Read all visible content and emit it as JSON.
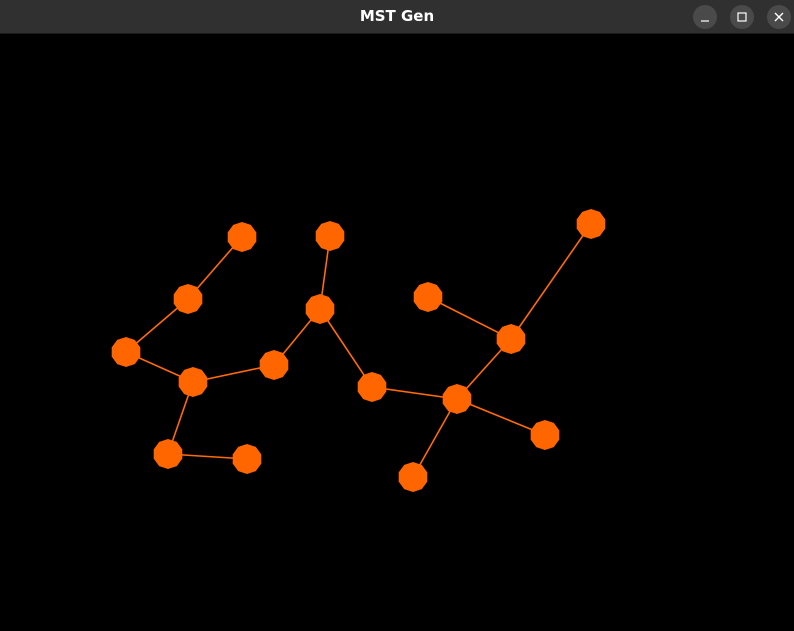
{
  "window": {
    "title": "MST Gen"
  },
  "titlebar_buttons": {
    "minimize_icon": "minimize-icon",
    "maximize_icon": "maximize-icon",
    "close_icon": "close-icon"
  },
  "colors": {
    "background": "#000000",
    "titlebar": "#303030",
    "node_fill": "#ff6600",
    "edge_stroke": "#ff6a0a"
  }
}
